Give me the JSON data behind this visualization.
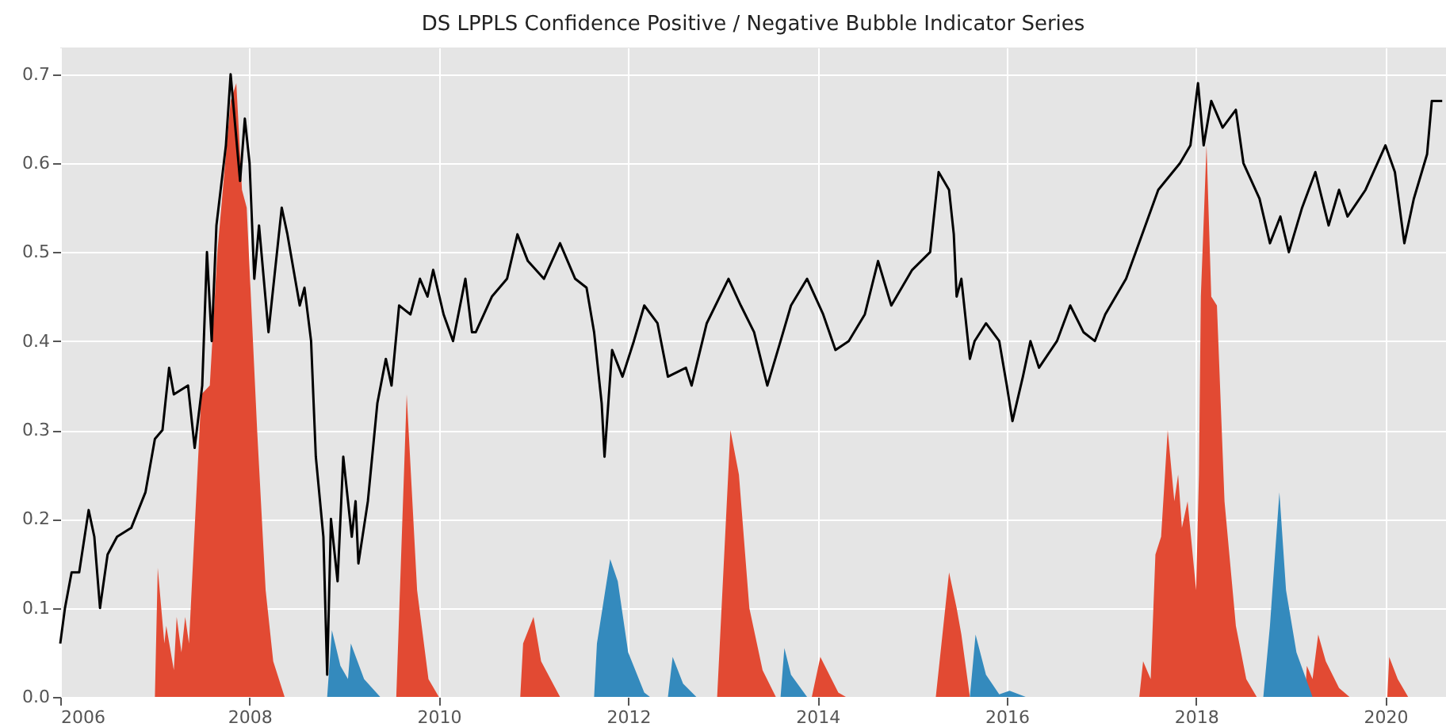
{
  "chart_data": {
    "type": "area",
    "title": "DS LPPLS Confidence Positive / Negative Bubble Indicator Series",
    "xlim": [
      2006,
      2020.64
    ],
    "xticks": [
      2006,
      2008,
      2010,
      2012,
      2014,
      2016,
      2018,
      2020
    ],
    "ylim": [
      0,
      0.73
    ],
    "yticks": [
      {
        "value": 0,
        "label": "0.0"
      },
      0.1,
      0.2,
      0.3,
      0.4,
      0.5,
      0.6,
      0.7
    ],
    "grid": true,
    "series": [
      {
        "color": "#e24a33",
        "x": [
          2007.0,
          2007.03,
          2007.1,
          2007.12,
          2007.2,
          2007.23,
          2007.28,
          2007.32,
          2007.36,
          2007.49,
          2007.58,
          2007.66,
          2007.8,
          2007.86,
          2007.92,
          2007.97,
          2008.08,
          2008.17,
          2008.25,
          2008.37,
          2009.55,
          2009.66,
          2009.77,
          2009.89,
          2010.0,
          2010.86,
          2010.89,
          2011.0,
          2011.08,
          2011.28,
          2012.94,
          2013.08,
          2013.17,
          2013.28,
          2013.42,
          2013.56,
          2013.94,
          2014.03,
          2014.22,
          2014.3,
          2015.25,
          2015.39,
          2015.47,
          2015.52,
          2015.61,
          2017.4,
          2017.44,
          2017.52,
          2017.57,
          2017.63,
          2017.7,
          2017.77,
          2017.81,
          2017.85,
          2017.91,
          2018.0,
          2018.03,
          2018.05,
          2018.11,
          2018.16,
          2018.22,
          2018.3,
          2018.42,
          2018.53,
          2018.64,
          2019.15,
          2019.17,
          2019.23,
          2019.29,
          2019.37,
          2019.51,
          2019.62,
          2020.02,
          2020.04,
          2020.13,
          2020.24
        ],
        "values": [
          0,
          0.145,
          0.06,
          0.08,
          0.03,
          0.09,
          0.05,
          0.09,
          0.06,
          0.34,
          0.35,
          0.5,
          0.67,
          0.69,
          0.57,
          0.55,
          0.3,
          0.12,
          0.04,
          0,
          0,
          0.34,
          0.12,
          0.02,
          0,
          0,
          0.06,
          0.09,
          0.04,
          0,
          0,
          0.3,
          0.25,
          0.1,
          0.03,
          0,
          0,
          0.045,
          0.005,
          0,
          0,
          0.14,
          0.1,
          0.07,
          0,
          0,
          0.04,
          0.02,
          0.16,
          0.18,
          0.3,
          0.22,
          0.25,
          0.19,
          0.22,
          0.12,
          0.25,
          0.45,
          0.62,
          0.45,
          0.44,
          0.22,
          0.08,
          0.02,
          0,
          0,
          0.035,
          0.02,
          0.07,
          0.04,
          0.01,
          0,
          0,
          0.045,
          0.02,
          0
        ]
      },
      {
        "color": "#348abd",
        "x": [
          2008.82,
          2008.87,
          2008.96,
          2009.04,
          2009.07,
          2009.21,
          2009.38,
          2011.64,
          2011.67,
          2011.81,
          2011.89,
          2012.0,
          2012.17,
          2012.23,
          2012.42,
          2012.47,
          2012.58,
          2012.72,
          2013.61,
          2013.65,
          2013.72,
          2013.89,
          2015.61,
          2015.67,
          2015.78,
          2015.92,
          2016.03,
          2016.2,
          2018.71,
          2018.78,
          2018.88,
          2018.95,
          2019.06,
          2019.23
        ],
        "values": [
          0,
          0.075,
          0.035,
          0.02,
          0.06,
          0.02,
          0,
          0,
          0.06,
          0.155,
          0.13,
          0.05,
          0.005,
          0,
          0,
          0.045,
          0.015,
          0,
          0,
          0.055,
          0.025,
          0,
          0,
          0.07,
          0.025,
          0.003,
          0.007,
          0,
          0,
          0.08,
          0.23,
          0.12,
          0.05,
          0
        ]
      },
      {
        "type": "line",
        "color": "#000000",
        "x": [
          2006.0,
          2006.05,
          2006.12,
          2006.2,
          2006.3,
          2006.36,
          2006.42,
          2006.5,
          2006.6,
          2006.75,
          2006.9,
          2007.0,
          2007.08,
          2007.15,
          2007.2,
          2007.35,
          2007.42,
          2007.5,
          2007.55,
          2007.6,
          2007.65,
          2007.75,
          2007.8,
          2007.9,
          2007.95,
          2008.0,
          2008.05,
          2008.1,
          2008.2,
          2008.34,
          2008.4,
          2008.53,
          2008.58,
          2008.65,
          2008.7,
          2008.78,
          2008.82,
          2008.86,
          2008.93,
          2008.99,
          2009.08,
          2009.12,
          2009.15,
          2009.25,
          2009.35,
          2009.44,
          2009.5,
          2009.58,
          2009.7,
          2009.8,
          2009.88,
          2009.94,
          2010.05,
          2010.15,
          2010.28,
          2010.35,
          2010.39,
          2010.56,
          2010.72,
          2010.83,
          2010.94,
          2011.11,
          2011.28,
          2011.44,
          2011.56,
          2011.64,
          2011.72,
          2011.75,
          2011.83,
          2011.94,
          2012.06,
          2012.17,
          2012.31,
          2012.42,
          2012.61,
          2012.67,
          2012.83,
          2013.06,
          2013.19,
          2013.33,
          2013.47,
          2013.61,
          2013.72,
          2013.89,
          2014.06,
          2014.19,
          2014.33,
          2014.5,
          2014.64,
          2014.78,
          2015.0,
          2015.19,
          2015.28,
          2015.39,
          2015.44,
          2015.47,
          2015.52,
          2015.61,
          2015.66,
          2015.78,
          2015.92,
          2016.0,
          2016.06,
          2016.17,
          2016.25,
          2016.34,
          2016.53,
          2016.67,
          2016.81,
          2016.93,
          2017.04,
          2017.26,
          2017.43,
          2017.6,
          2017.83,
          2017.94,
          2018.02,
          2018.08,
          2018.16,
          2018.28,
          2018.42,
          2018.5,
          2018.67,
          2018.78,
          2018.89,
          2018.98,
          2019.12,
          2019.26,
          2019.4,
          2019.51,
          2019.6,
          2019.79,
          2020.0,
          2020.1,
          2020.2,
          2020.3,
          2020.44,
          2020.49,
          2020.6
        ],
        "values": [
          0.06,
          0.1,
          0.14,
          0.14,
          0.21,
          0.18,
          0.1,
          0.16,
          0.18,
          0.19,
          0.23,
          0.29,
          0.3,
          0.37,
          0.34,
          0.35,
          0.28,
          0.35,
          0.5,
          0.4,
          0.53,
          0.62,
          0.7,
          0.58,
          0.65,
          0.6,
          0.47,
          0.53,
          0.41,
          0.55,
          0.52,
          0.44,
          0.46,
          0.4,
          0.27,
          0.18,
          0.025,
          0.2,
          0.13,
          0.27,
          0.18,
          0.22,
          0.15,
          0.22,
          0.33,
          0.38,
          0.35,
          0.44,
          0.43,
          0.47,
          0.45,
          0.48,
          0.43,
          0.4,
          0.47,
          0.41,
          0.41,
          0.45,
          0.47,
          0.52,
          0.49,
          0.47,
          0.51,
          0.47,
          0.46,
          0.41,
          0.33,
          0.27,
          0.39,
          0.36,
          0.4,
          0.44,
          0.42,
          0.36,
          0.37,
          0.35,
          0.42,
          0.47,
          0.44,
          0.41,
          0.35,
          0.4,
          0.44,
          0.47,
          0.43,
          0.39,
          0.4,
          0.43,
          0.49,
          0.44,
          0.48,
          0.5,
          0.59,
          0.57,
          0.52,
          0.45,
          0.47,
          0.38,
          0.4,
          0.42,
          0.4,
          0.35,
          0.31,
          0.36,
          0.4,
          0.37,
          0.4,
          0.44,
          0.41,
          0.4,
          0.43,
          0.47,
          0.52,
          0.57,
          0.6,
          0.62,
          0.69,
          0.62,
          0.67,
          0.64,
          0.66,
          0.6,
          0.56,
          0.51,
          0.54,
          0.5,
          0.55,
          0.59,
          0.53,
          0.57,
          0.54,
          0.57,
          0.62,
          0.59,
          0.51,
          0.56,
          0.61,
          0.67,
          0.67
        ]
      }
    ]
  }
}
